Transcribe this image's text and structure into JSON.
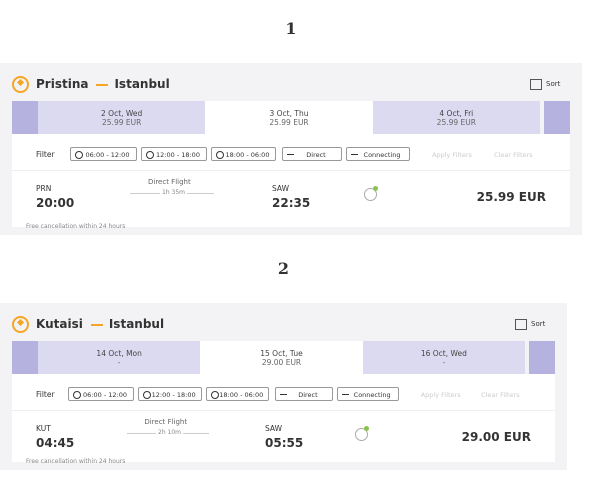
{
  "sections": [
    {
      "number": "1",
      "origin": "Pristina",
      "destination": "Istanbul",
      "sort": "Sort",
      "dates": [
        {
          "date": "2 Oct, Wed",
          "price": "25.99 EUR"
        },
        {
          "date": "3 Oct, Thu",
          "price": "25.99 EUR"
        },
        {
          "date": "4 Oct, Fri",
          "price": "25.99 EUR"
        }
      ],
      "filter": {
        "label": "Filter",
        "options": [
          "06:00 - 12:00",
          "12:00 - 18:00",
          "18:00 - 06:00",
          "Direct",
          "Connecting"
        ],
        "apply": "Apply Filters",
        "clear": "Clear Filters"
      },
      "flight": {
        "from_code": "PRN",
        "departure": "20:00",
        "type": "Direct Flight",
        "duration": "1h 35m",
        "to_code": "SAW",
        "arrival": "22:35",
        "price": "25.99 EUR"
      },
      "note": "Free cancellation within 24 hours"
    },
    {
      "number": "2",
      "origin": "Kutaisi",
      "destination": "Istanbul",
      "sort": "Sort",
      "dates": [
        {
          "date": "14 Oct, Mon",
          "price": "-"
        },
        {
          "date": "15 Oct, Tue",
          "price": "29.00 EUR"
        },
        {
          "date": "16 Oct, Wed",
          "price": "-"
        }
      ],
      "filter": {
        "label": "Filter",
        "options": [
          "06:00 - 12:00",
          "12:00 - 18:00",
          "18:00 - 06:00",
          "Direct",
          "Connecting"
        ],
        "apply": "Apply Filters",
        "clear": "Clear Filters"
      },
      "flight": {
        "from_code": "KUT",
        "departure": "04:45",
        "type": "Direct Flight",
        "duration": "2h 10m",
        "to_code": "SAW",
        "arrival": "05:55",
        "price": "29.00 EUR"
      },
      "note": "Free cancellation within 24 hours"
    }
  ]
}
